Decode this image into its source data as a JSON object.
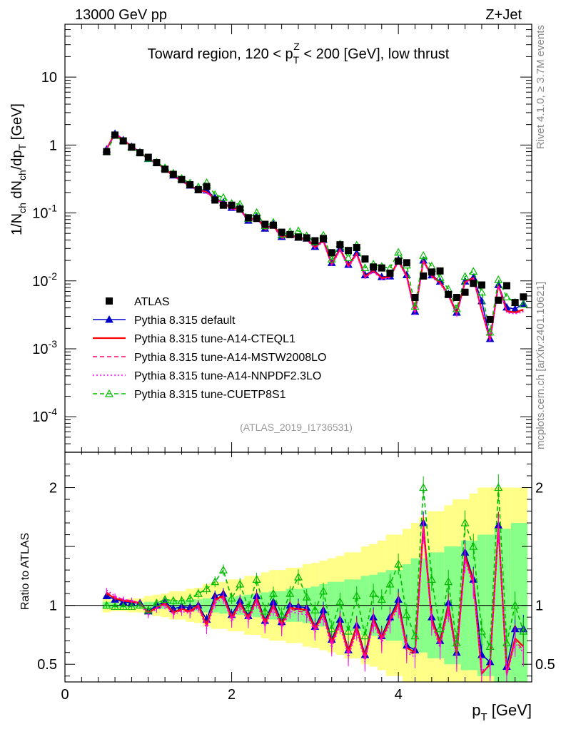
{
  "header": {
    "left": "13000 GeV pp",
    "right": "Z+Jet"
  },
  "side": {
    "rivet": "Rivet 4.1.0, ≥ 3.7M events",
    "mcplots": "mcplots.cern.ch [arXiv:2401.10621]"
  },
  "chart_data": {
    "type": "line",
    "title": "Toward region, 120 < p_T^Z < 200 [GeV], low thrust",
    "analysis_id": "(ATLAS_2019_I1736531)",
    "xlabel": "p_T [GeV]",
    "ylabel": "1/N_ch dN_ch/dp_T [GeV]",
    "ratio_ylabel": "Ratio to ATLAS",
    "xlim": [
      0,
      5.6
    ],
    "ylim": [
      3e-05,
      60
    ],
    "ratio_ylim": [
      0.35,
      2.3
    ],
    "yscale": "log",
    "xticks": [
      "0",
      "2",
      "4"
    ],
    "yticks": [
      "10",
      "1",
      "10^-1",
      "10^-2",
      "10^-3",
      "10^-4"
    ],
    "ratio_yticks": [
      "0.5",
      "1",
      "2"
    ],
    "legend_position": "bottom-left",
    "x": [
      0.5,
      0.6,
      0.7,
      0.8,
      0.9,
      1.0,
      1.1,
      1.2,
      1.3,
      1.4,
      1.5,
      1.6,
      1.7,
      1.8,
      1.9,
      2.0,
      2.1,
      2.2,
      2.3,
      2.4,
      2.5,
      2.6,
      2.7,
      2.8,
      2.9,
      3.0,
      3.1,
      3.2,
      3.3,
      3.4,
      3.5,
      3.6,
      3.7,
      3.8,
      3.9,
      4.0,
      4.1,
      4.2,
      4.3,
      4.4,
      4.5,
      4.6,
      4.7,
      4.8,
      4.9,
      5.0,
      5.1,
      5.2,
      5.3,
      5.4,
      5.5
    ],
    "series": [
      {
        "name": "ATLAS",
        "color": "#000000",
        "style": "marker-square",
        "values": [
          0.8,
          1.4,
          1.15,
          0.93,
          0.77,
          0.66,
          0.55,
          0.44,
          0.37,
          0.31,
          0.26,
          0.22,
          0.245,
          0.155,
          0.13,
          0.13,
          0.114,
          0.085,
          0.083,
          0.068,
          0.066,
          0.052,
          0.048,
          0.044,
          0.043,
          0.039,
          0.042,
          0.026,
          0.034,
          0.028,
          0.031,
          0.021,
          0.016,
          0.0155,
          0.013,
          0.0195,
          0.0185,
          0.0057,
          0.0118,
          0.0135,
          0.014,
          0.0063,
          0.0057,
          0.0068,
          0.0092,
          0.0087,
          0.0027,
          0.0052,
          0.0085,
          0.0048,
          0.0058
        ]
      },
      {
        "name": "Pythia 8.315 default",
        "color": "#0000cc",
        "style": "solid-triangle",
        "ratio": [
          1.08,
          1.05,
          1.03,
          1.02,
          1.02,
          0.95,
          1.0,
          1.03,
          0.97,
          0.99,
          0.98,
          1.0,
          0.88,
          1.08,
          1.1,
          0.92,
          1.04,
          0.91,
          1.08,
          0.87,
          1.03,
          0.86,
          1.0,
          0.99,
          0.98,
          0.82,
          0.96,
          0.71,
          0.88,
          0.62,
          0.83,
          0.58,
          0.9,
          0.74,
          0.9,
          1.05,
          0.66,
          0.62,
          1.7,
          0.9,
          0.7,
          1.02,
          0.6,
          1.45,
          1.22,
          0.58,
          0.52,
          1.68,
          0.48,
          0.8,
          0.8
        ]
      },
      {
        "name": "Pythia 8.315 tune-A14-CTEQL1",
        "color": "#ff0000",
        "style": "solid",
        "ratio": [
          1.1,
          1.06,
          1.04,
          1.03,
          1.02,
          0.94,
          0.98,
          1.02,
          0.94,
          0.97,
          0.95,
          1.0,
          0.83,
          1.05,
          1.08,
          0.89,
          1.02,
          0.89,
          1.06,
          0.85,
          1.0,
          0.84,
          0.98,
          0.97,
          0.96,
          0.8,
          0.93,
          0.68,
          0.86,
          0.6,
          0.82,
          0.55,
          0.88,
          0.72,
          0.88,
          1.02,
          0.64,
          0.6,
          1.67,
          0.88,
          0.68,
          1.0,
          0.58,
          1.42,
          1.2,
          0.42,
          0.5,
          1.67,
          0.42,
          0.72,
          0.65
        ]
      },
      {
        "name": "Pythia 8.315 tune-A14-MSTW2008LO",
        "color": "#ff0066",
        "style": "dashed",
        "ratio": [
          1.11,
          1.07,
          1.05,
          1.04,
          1.02,
          0.93,
          0.98,
          1.01,
          0.93,
          0.96,
          0.94,
          0.99,
          0.82,
          1.04,
          1.07,
          0.88,
          1.01,
          0.88,
          1.05,
          0.84,
          0.99,
          0.82,
          0.97,
          0.95,
          0.94,
          0.79,
          0.92,
          0.66,
          0.85,
          0.58,
          0.8,
          0.54,
          0.87,
          0.7,
          0.87,
          1.0,
          0.62,
          0.58,
          1.65,
          0.86,
          0.66,
          0.98,
          0.56,
          1.4,
          1.18,
          0.43,
          0.49,
          1.66,
          0.41,
          0.7,
          0.62
        ]
      },
      {
        "name": "Pythia 8.315 tune-A14-NNPDF2.3LO",
        "color": "#ff00ff",
        "style": "dotted",
        "ratio": [
          1.13,
          1.08,
          1.05,
          1.04,
          1.01,
          0.92,
          0.97,
          1.0,
          0.92,
          0.95,
          0.93,
          0.98,
          0.8,
          1.02,
          1.06,
          0.86,
          0.99,
          0.86,
          1.03,
          0.82,
          0.97,
          0.8,
          0.95,
          0.93,
          0.92,
          0.77,
          0.9,
          0.64,
          0.83,
          0.56,
          0.78,
          0.52,
          0.85,
          0.68,
          0.85,
          0.98,
          0.6,
          0.56,
          1.62,
          0.84,
          0.64,
          0.96,
          0.54,
          1.38,
          1.16,
          0.45,
          0.47,
          1.64,
          0.4,
          0.68,
          0.6
        ]
      },
      {
        "name": "Pythia 8.315 tune-CUETP8S1",
        "color": "#00bb00",
        "style": "dashed-open-triangle",
        "ratio": [
          1.0,
          0.99,
          0.99,
          0.99,
          1.0,
          0.96,
          1.02,
          1.05,
          1.04,
          1.04,
          1.06,
          1.1,
          1.14,
          1.2,
          1.3,
          1.06,
          1.18,
          0.98,
          1.22,
          0.95,
          1.1,
          0.92,
          1.1,
          1.24,
          1.07,
          0.96,
          1.12,
          0.8,
          1.03,
          0.78,
          1.08,
          0.74,
          1.1,
          1.05,
          1.18,
          1.35,
          0.92,
          0.74,
          2.0,
          1.22,
          0.8,
          1.2,
          0.68,
          1.7,
          1.5,
          0.78,
          0.65,
          2.0,
          0.68,
          1.0,
          0.78
        ]
      }
    ],
    "atlas_uncertainty": {
      "stat_rel": [
        0.03,
        0.02,
        0.02,
        0.02,
        0.02,
        0.03,
        0.03,
        0.03,
        0.04,
        0.04,
        0.05,
        0.05,
        0.06,
        0.06,
        0.07,
        0.07,
        0.08,
        0.09,
        0.1,
        0.11,
        0.12,
        0.12,
        0.14,
        0.14,
        0.15,
        0.16,
        0.18,
        0.2,
        0.2,
        0.22,
        0.22,
        0.25,
        0.26,
        0.28,
        0.3,
        0.3,
        0.35,
        0.4,
        0.4,
        0.45,
        0.45,
        0.5,
        0.5,
        0.55,
        0.55,
        0.6,
        0.6,
        0.65,
        0.65,
        0.7,
        0.7
      ],
      "total_rel": [
        0.06,
        0.05,
        0.05,
        0.06,
        0.06,
        0.08,
        0.09,
        0.1,
        0.12,
        0.12,
        0.14,
        0.15,
        0.18,
        0.2,
        0.2,
        0.22,
        0.22,
        0.25,
        0.25,
        0.28,
        0.3,
        0.3,
        0.32,
        0.32,
        0.35,
        0.36,
        0.38,
        0.4,
        0.42,
        0.45,
        0.45,
        0.5,
        0.52,
        0.55,
        0.6,
        0.6,
        0.65,
        0.7,
        0.75,
        0.8,
        0.8,
        0.85,
        0.9,
        0.9,
        0.95,
        1.0,
        1.0,
        1.0,
        1.0,
        1.0,
        1.0
      ]
    }
  }
}
